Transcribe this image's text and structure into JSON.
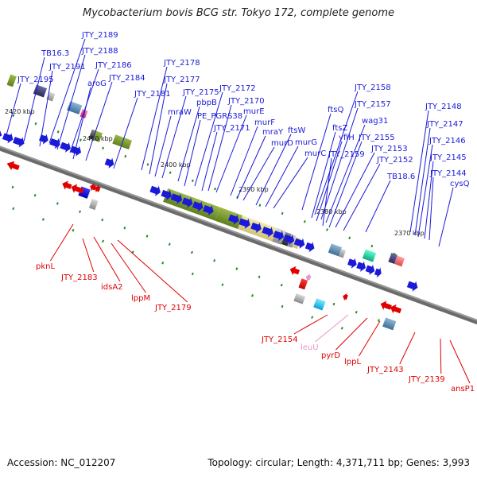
{
  "title": "Mycobacterium bovis BCG str. Tokyo 172, complete genome",
  "accession": "Accession: NC_012207",
  "summary": "Topology: circular; Length: 4,371,711 bp; Genes: 3,993",
  "colors": {
    "forward": "#1a1adc",
    "reverse": "#e60000",
    "rna": "#e696c8",
    "backbone": "#666666",
    "tick_dot": "#2a8a2a"
  },
  "ticks": [
    "2420 kbp",
    "2410 kbp",
    "2400 kbp",
    "2390 kbp",
    "2380 kbp",
    "2370 kbp"
  ],
  "forward_labels": [
    "TB16.3",
    "JTY_2195",
    "JTY_2191",
    "JTY_2189",
    "JTY_2188",
    "JTY_2186",
    "aroG",
    "JTY_2184",
    "JTY_2181",
    "JTY_2178",
    "JTY_2177",
    "mraW",
    "JTY_2175",
    "pbpB",
    "PE_PGRS38",
    "JTY_2172",
    "JTY_2171",
    "JTY_2170",
    "murE",
    "murF",
    "mraY",
    "murD",
    "ftsW",
    "murG",
    "murC",
    "ftsQ",
    "JTY_2158",
    "ftsZ",
    "JTY_2157",
    "yfiH",
    "wag31",
    "JTY_2159",
    "JTY_2155",
    "JTY_2153",
    "JTY_2152",
    "TB18.6",
    "JTY_2148",
    "JTY_2147",
    "JTY_2146",
    "JTY_2145",
    "JTY_2144",
    "cysQ"
  ],
  "reverse_labels": [
    "pknL",
    "JTY_2183",
    "idsA2",
    "lppM",
    "JTY_2179",
    "JTY_2154",
    "leuU",
    "pyrD",
    "lppL",
    "JTY_2143",
    "JTY_2139",
    "ansP1"
  ]
}
